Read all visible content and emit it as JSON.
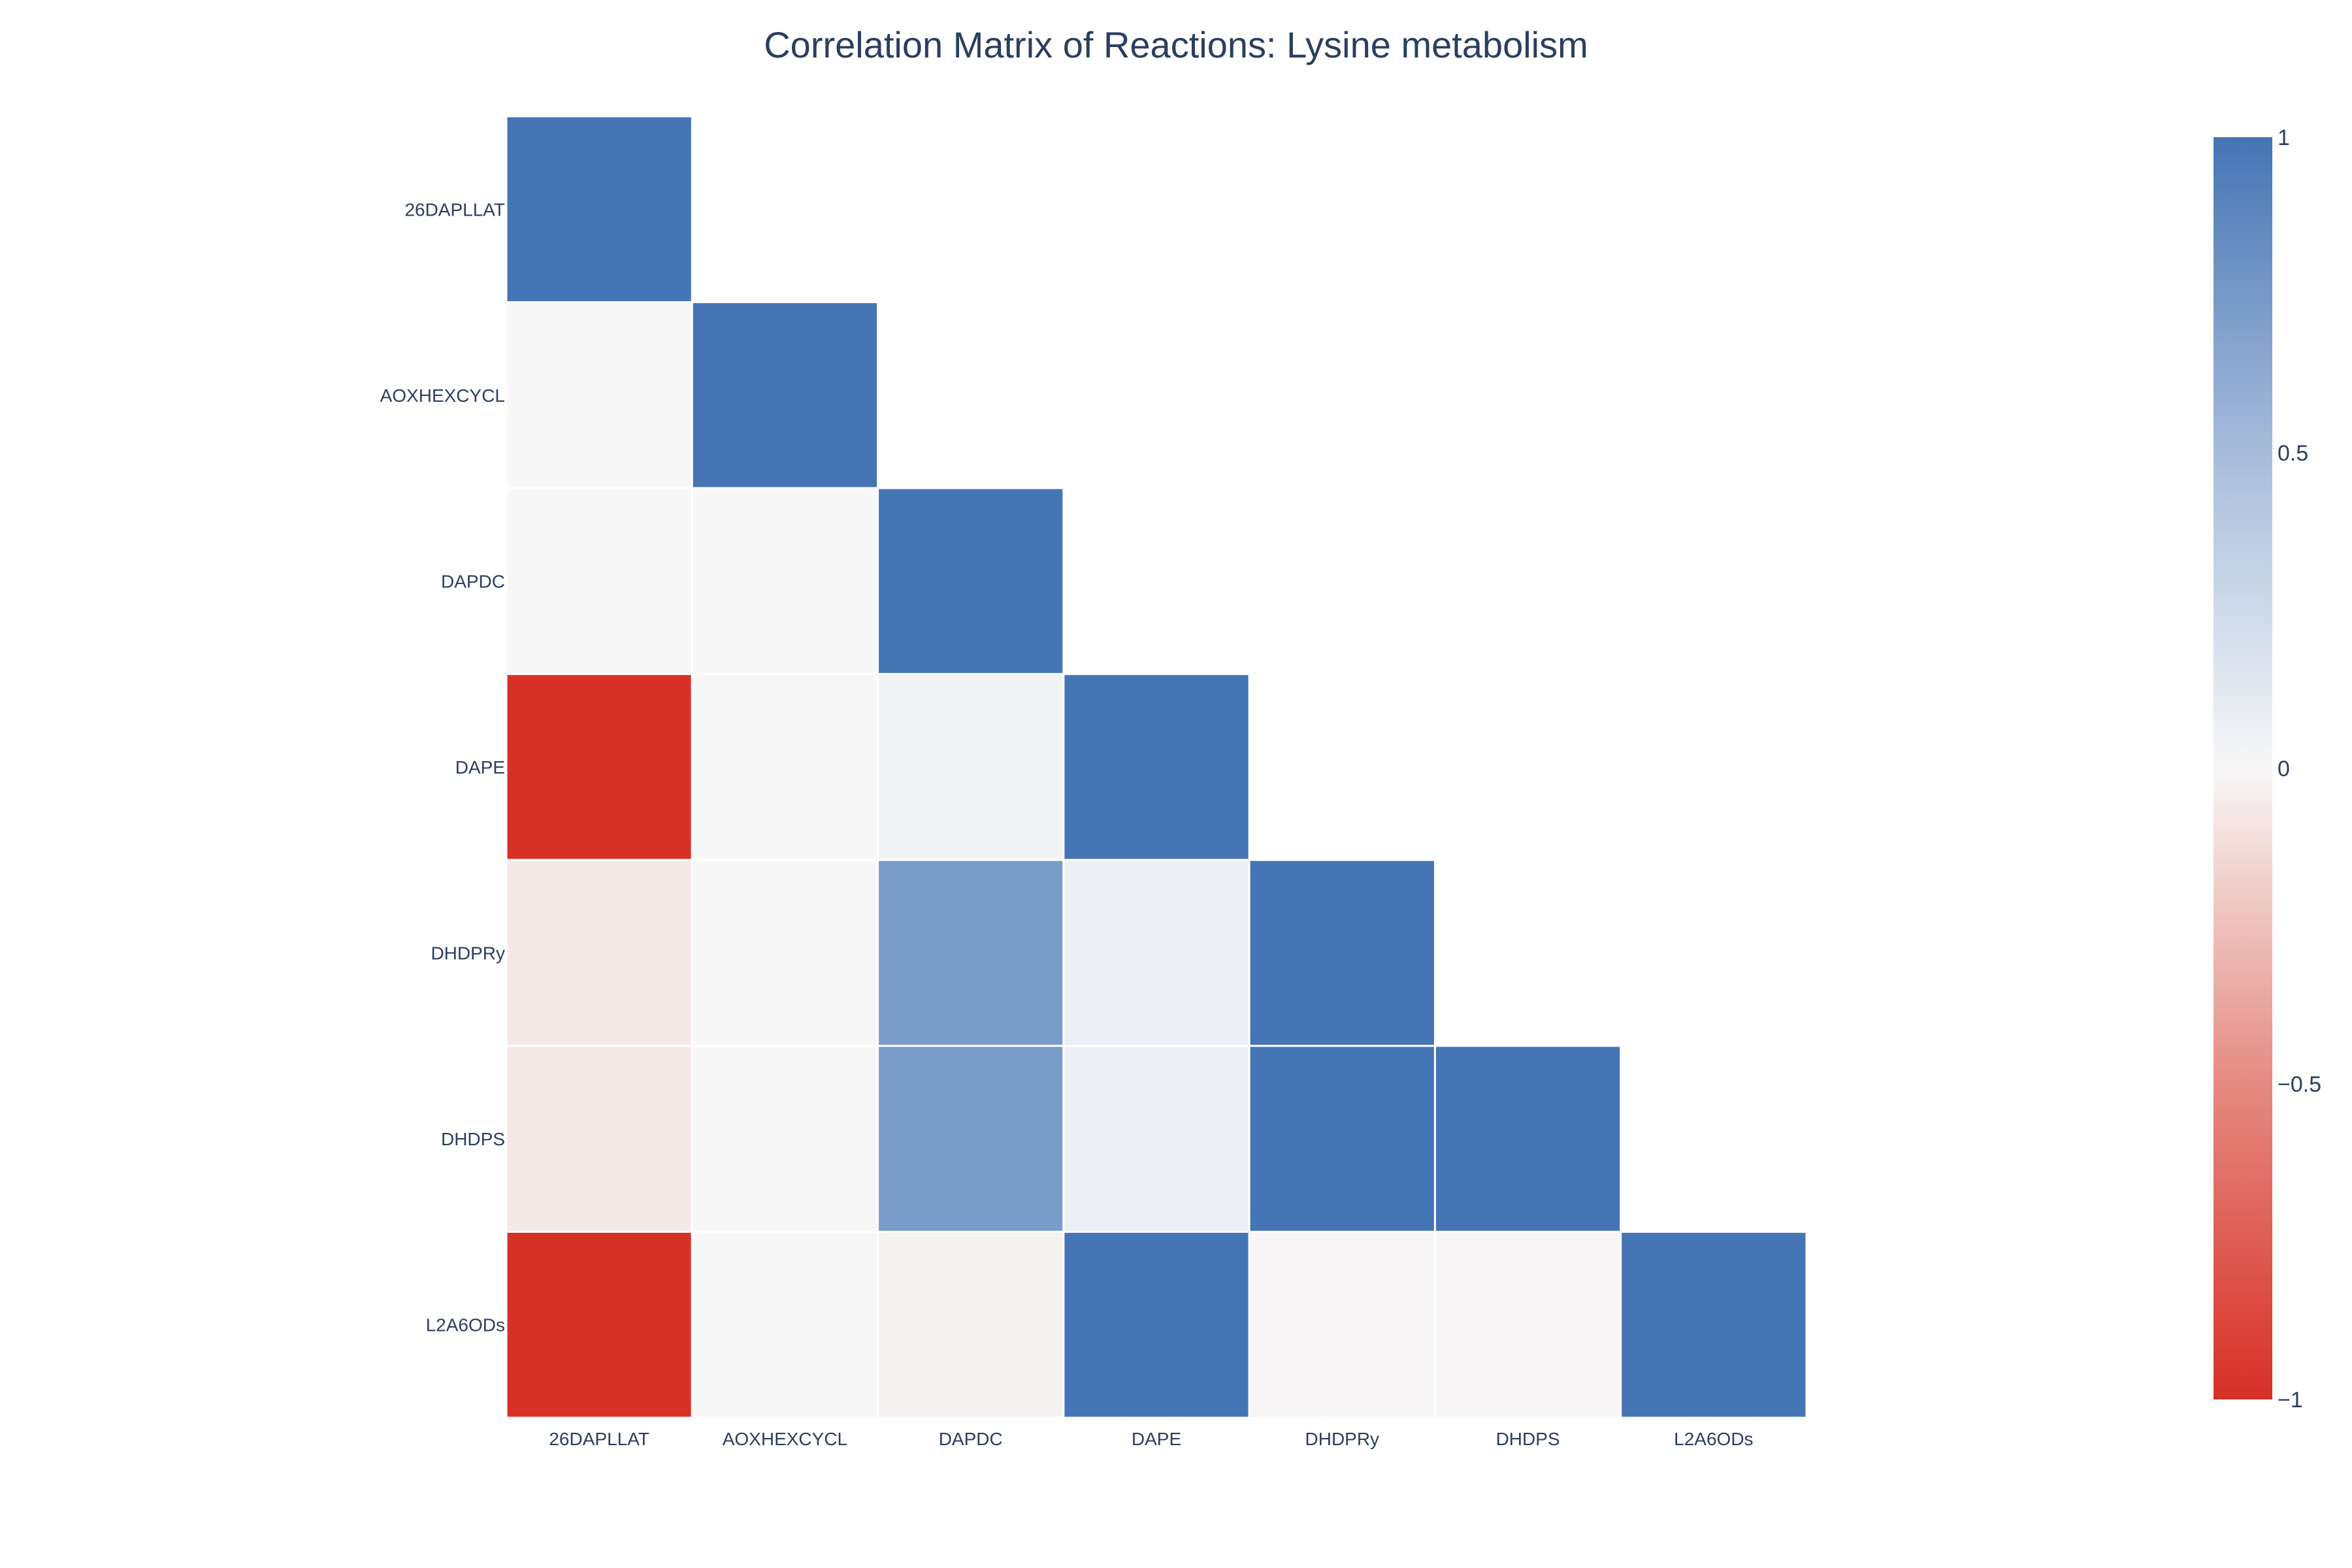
{
  "chart_data": {
    "type": "heatmap",
    "title": "Correlation Matrix of Reactions: Lysine metabolism",
    "xlabel": "",
    "ylabel": "",
    "x_categories": [
      "26DAPLLAT",
      "AOXHEXCYCL",
      "DAPDC",
      "DAPE",
      "DHDPRy",
      "DHDPS",
      "L2A6ODs"
    ],
    "y_categories": [
      "26DAPLLAT",
      "AOXHEXCYCL",
      "DAPDC",
      "DAPE",
      "DHDPRy",
      "DHDPS",
      "L2A6ODs"
    ],
    "values": [
      [
        1,
        null,
        null,
        null,
        null,
        null,
        null
      ],
      [
        0,
        1,
        null,
        null,
        null,
        null,
        null
      ],
      [
        0,
        0,
        1,
        null,
        null,
        null,
        null
      ],
      [
        -1,
        0,
        0.03,
        1,
        null,
        null,
        null
      ],
      [
        -0.07,
        0,
        0.7,
        0.06,
        1,
        null,
        null
      ],
      [
        -0.07,
        0,
        0.7,
        0.06,
        1,
        1,
        null
      ],
      [
        -1,
        0,
        -0.03,
        1,
        -0.01,
        -0.01,
        1
      ]
    ],
    "zrange": [
      -1,
      1
    ],
    "colorscale": [
      [
        0,
        "#d73027"
      ],
      [
        0.5,
        "#f7f7f7"
      ],
      [
        1,
        "#4575b4"
      ]
    ],
    "colorbar": {
      "ticks": [
        1,
        0.5,
        0,
        -0.5,
        -1
      ],
      "ticktext": [
        "1",
        "0.5",
        "0",
        "−0.5",
        "−1"
      ]
    },
    "cell_border_color": "#ffffff",
    "grid": false,
    "legend": "colorbar-right"
  }
}
